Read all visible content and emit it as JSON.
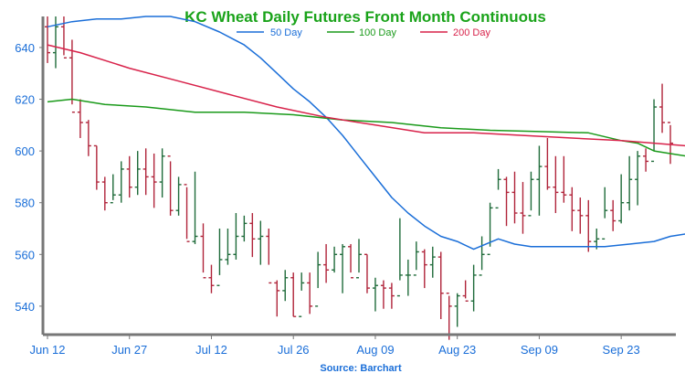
{
  "chart_data": {
    "type": "ohlc",
    "title": "KC Wheat Daily Futures Front Month Continuous",
    "source": "Source: Barchart",
    "colors": {
      "title": "#1aa31a",
      "tick_label": "#1a6ed8",
      "source": "#1a6ed8",
      "up_bar": "#1f6b3a",
      "down_bar": "#b0243a",
      "axis": "#777777",
      "ma50": "#1a6ed8",
      "ma100": "#1a9a1a",
      "ma200": "#d8224a"
    },
    "ylim": [
      529,
      652
    ],
    "yticks": [
      540,
      560,
      580,
      600,
      620,
      640
    ],
    "xticks": [
      {
        "label": "Jun 12",
        "index": 0
      },
      {
        "label": "Jun 27",
        "index": 10
      },
      {
        "label": "Jul 12",
        "index": 20
      },
      {
        "label": "Jul 26",
        "index": 30
      },
      {
        "label": "Aug 09",
        "index": 40
      },
      {
        "label": "Aug 23",
        "index": 50
      },
      {
        "label": "Sep 09",
        "index": 60
      },
      {
        "label": "Sep 23",
        "index": 70
      }
    ],
    "bars": [
      [
        648,
        652,
        634,
        638
      ],
      [
        638,
        652,
        632,
        648
      ],
      [
        648,
        652,
        637,
        636
      ],
      [
        636,
        643,
        618,
        615
      ],
      [
        615,
        620,
        605,
        611
      ],
      [
        611,
        612,
        598,
        602
      ],
      [
        602,
        602,
        585,
        588
      ],
      [
        588,
        590,
        577,
        580
      ],
      [
        580,
        591,
        581,
        583
      ],
      [
        583,
        596,
        580,
        593
      ],
      [
        593,
        598,
        582,
        586
      ],
      [
        586,
        600,
        583,
        593
      ],
      [
        593,
        601,
        583,
        590
      ],
      [
        590,
        599,
        578,
        588
      ],
      [
        588,
        601,
        582,
        598
      ],
      [
        598,
        596,
        575,
        577
      ],
      [
        577,
        590,
        575,
        587
      ],
      [
        587,
        586,
        566,
        565
      ],
      [
        565,
        592,
        564,
        567
      ],
      [
        567,
        572,
        553,
        551
      ],
      [
        551,
        556,
        545,
        548
      ],
      [
        548,
        570,
        552,
        558
      ],
      [
        558,
        570,
        556,
        560
      ],
      [
        560,
        576,
        558,
        567
      ],
      [
        567,
        575,
        565,
        572
      ],
      [
        572,
        576,
        559,
        566
      ],
      [
        566,
        573,
        556,
        567
      ],
      [
        567,
        570,
        556,
        549
      ],
      [
        549,
        550,
        536,
        546
      ],
      [
        546,
        554,
        542,
        551
      ],
      [
        551,
        553,
        536,
        536
      ],
      [
        536,
        553,
        546,
        549
      ],
      [
        549,
        553,
        537,
        540
      ],
      [
        540,
        561,
        547,
        556
      ],
      [
        556,
        564,
        549,
        554
      ],
      [
        554,
        563,
        553,
        560
      ],
      [
        560,
        564,
        545,
        563
      ],
      [
        563,
        564,
        553,
        551
      ],
      [
        551,
        566,
        553,
        560
      ],
      [
        560,
        560,
        545,
        547
      ],
      [
        547,
        551,
        538,
        548
      ],
      [
        548,
        550,
        539,
        547
      ],
      [
        547,
        549,
        539,
        544
      ],
      [
        544,
        574,
        550,
        552
      ],
      [
        552,
        558,
        544,
        552
      ],
      [
        552,
        565,
        554,
        561
      ],
      [
        561,
        562,
        547,
        556
      ],
      [
        556,
        563,
        551,
        559
      ],
      [
        559,
        561,
        535,
        545
      ],
      [
        545,
        544,
        527,
        540
      ],
      [
        540,
        545,
        532,
        544
      ],
      [
        544,
        550,
        543,
        542
      ],
      [
        542,
        556,
        538,
        552
      ],
      [
        552,
        567,
        554,
        560
      ],
      [
        560,
        580,
        563,
        578
      ],
      [
        578,
        593,
        585,
        589
      ],
      [
        589,
        590,
        571,
        584
      ],
      [
        584,
        592,
        572,
        576
      ],
      [
        576,
        588,
        568,
        575
      ],
      [
        575,
        592,
        577,
        589
      ],
      [
        589,
        602,
        575,
        594
      ],
      [
        594,
        605,
        585,
        586
      ],
      [
        586,
        598,
        576,
        584
      ],
      [
        584,
        598,
        580,
        583
      ],
      [
        583,
        586,
        569,
        577
      ],
      [
        577,
        582,
        568,
        575
      ],
      [
        575,
        581,
        561,
        565
      ],
      [
        565,
        570,
        562,
        566
      ],
      [
        566,
        586,
        574,
        577
      ],
      [
        577,
        581,
        569,
        573
      ],
      [
        573,
        591,
        572,
        580
      ],
      [
        580,
        598,
        577,
        589
      ],
      [
        589,
        600,
        579,
        598
      ],
      [
        598,
        601,
        592,
        596
      ],
      [
        596,
        620,
        600,
        617
      ],
      [
        617,
        626,
        607,
        611
      ],
      [
        611,
        610,
        595,
        603
      ]
    ],
    "series": [
      {
        "name": "50 Day",
        "values": [
          [
            0,
            648
          ],
          [
            3,
            650
          ],
          [
            6,
            651
          ],
          [
            9,
            651
          ],
          [
            12,
            652
          ],
          [
            15,
            652
          ],
          [
            18,
            650
          ],
          [
            21,
            646
          ],
          [
            24,
            641
          ],
          [
            26,
            636
          ],
          [
            28,
            630
          ],
          [
            30,
            624
          ],
          [
            32,
            619
          ],
          [
            34,
            613
          ],
          [
            36,
            606
          ],
          [
            38,
            598
          ],
          [
            40,
            590
          ],
          [
            42,
            582
          ],
          [
            44,
            576
          ],
          [
            46,
            571
          ],
          [
            48,
            567
          ],
          [
            50,
            565
          ],
          [
            52,
            562
          ],
          [
            55,
            566
          ],
          [
            57,
            564
          ],
          [
            59,
            563
          ],
          [
            62,
            563
          ],
          [
            65,
            563
          ],
          [
            68,
            563
          ],
          [
            71,
            564
          ],
          [
            74,
            565
          ],
          [
            76,
            567
          ],
          [
            78,
            568
          ]
        ]
      },
      {
        "name": "100 Day",
        "values": [
          [
            0,
            619
          ],
          [
            3,
            620
          ],
          [
            7,
            618
          ],
          [
            12,
            617
          ],
          [
            18,
            615
          ],
          [
            24,
            615
          ],
          [
            30,
            614
          ],
          [
            36,
            612
          ],
          [
            42,
            611
          ],
          [
            48,
            609
          ],
          [
            54,
            608
          ],
          [
            60,
            607.5
          ],
          [
            66,
            607
          ],
          [
            70,
            604
          ],
          [
            72,
            603
          ],
          [
            74,
            600
          ],
          [
            76,
            599
          ],
          [
            78,
            598
          ]
        ]
      },
      {
        "name": "200 Day",
        "values": [
          [
            0,
            641
          ],
          [
            4,
            638
          ],
          [
            10,
            632
          ],
          [
            16,
            627
          ],
          [
            22,
            622
          ],
          [
            28,
            617
          ],
          [
            34,
            613
          ],
          [
            40,
            610
          ],
          [
            46,
            607
          ],
          [
            52,
            607
          ],
          [
            58,
            606
          ],
          [
            64,
            605
          ],
          [
            70,
            604
          ],
          [
            74,
            603
          ],
          [
            78,
            602
          ]
        ]
      }
    ]
  }
}
